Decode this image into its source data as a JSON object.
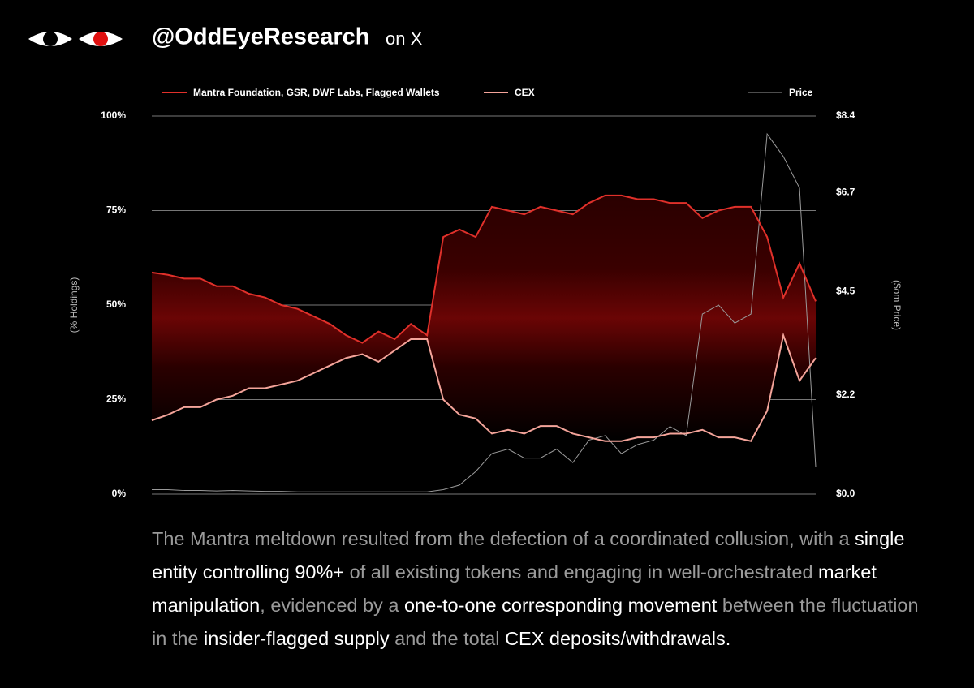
{
  "header": {
    "handle": "@OddEyeResearch",
    "suffix": "on X"
  },
  "chart_data": {
    "type": "line",
    "series": [
      {
        "name": "Mantra Foundation, GSR, DWF Labs, Flagged Wallets",
        "color": "#e0302a",
        "values": [
          58.6,
          58,
          57,
          57,
          55,
          55,
          53,
          52,
          50,
          49,
          47,
          45,
          42,
          40,
          43,
          41,
          45,
          42,
          68,
          70,
          68,
          76,
          75,
          74,
          76,
          75,
          74,
          77,
          79,
          79,
          78,
          78,
          77,
          77,
          73,
          75,
          76,
          76,
          68,
          52,
          61,
          51
        ]
      },
      {
        "name": "CEX",
        "color": "#f4a49a",
        "values": [
          19.5,
          21,
          23,
          23,
          25,
          26,
          28,
          28,
          29,
          30,
          32,
          34,
          36,
          37,
          35,
          38,
          41,
          41,
          25,
          21,
          20,
          16,
          17,
          16,
          18,
          18,
          16,
          15,
          14,
          14,
          15,
          15,
          16,
          16,
          17,
          15,
          15,
          14,
          22,
          42,
          30,
          36
        ]
      },
      {
        "name": "Price",
        "color": "#9a9a9a",
        "axis": "y2",
        "values": [
          0.1,
          0.1,
          0.08,
          0.08,
          0.07,
          0.08,
          0.07,
          0.06,
          0.06,
          0.05,
          0.05,
          0.05,
          0.05,
          0.05,
          0.05,
          0.05,
          0.05,
          0.05,
          0.1,
          0.2,
          0.5,
          0.9,
          1.0,
          0.8,
          0.8,
          1.0,
          0.7,
          1.2,
          1.3,
          0.9,
          1.1,
          1.2,
          1.5,
          1.3,
          4.0,
          4.2,
          3.8,
          4.0,
          8.0,
          7.5,
          6.8,
          0.6
        ]
      }
    ],
    "ylabel": "(% Holdings)",
    "y2label": "($om Price)",
    "ylim": [
      0,
      100
    ],
    "yticks": [
      {
        "value": 0,
        "label": "0%"
      },
      {
        "value": 25,
        "label": "25%"
      },
      {
        "value": 50,
        "label": "50%"
      },
      {
        "value": 75,
        "label": "75%"
      },
      {
        "value": 100,
        "label": "100%"
      }
    ],
    "y2lim": [
      0,
      8.4
    ],
    "y2ticks": [
      {
        "value": 0,
        "label": "$0.0"
      },
      {
        "value": 2.2,
        "label": "$2.2"
      },
      {
        "value": 4.5,
        "label": "$4.5"
      },
      {
        "value": 6.7,
        "label": "$6.7"
      },
      {
        "value": 8.4,
        "label": "$8.4"
      }
    ],
    "grid": true,
    "legend": "top"
  },
  "caption": [
    {
      "text": "The Mantra meltdown resulted from the defection of a coordinated collusion, with a ",
      "bold": false
    },
    {
      "text": "single entity controlling 90%+",
      "bold": true
    },
    {
      "text": " of all existing tokens and engaging in well-orchestrated ",
      "bold": false
    },
    {
      "text": "market manipulation",
      "bold": true
    },
    {
      "text": ", evidenced by a ",
      "bold": false
    },
    {
      "text": "one-to-one corresponding movement",
      "bold": true
    },
    {
      "text": " between the fluctuation in the ",
      "bold": false
    },
    {
      "text": "insider-flagged supply",
      "bold": true
    },
    {
      "text": " and the total ",
      "bold": false
    },
    {
      "text": "CEX deposits/withdrawals.",
      "bold": true
    }
  ]
}
